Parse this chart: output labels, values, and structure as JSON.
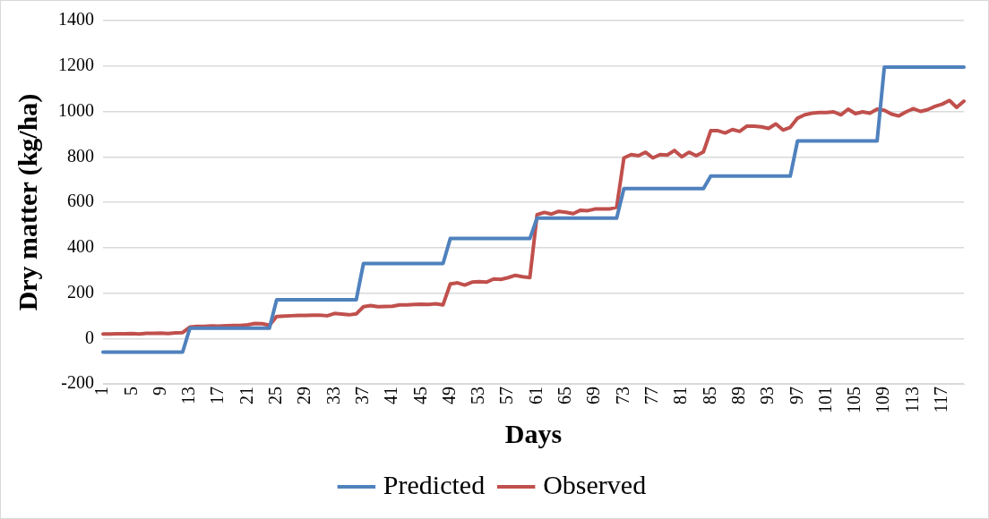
{
  "chart_data": {
    "type": "line",
    "xlabel": "Days",
    "ylabel": "Dry matter (kg/ha)",
    "categories": [
      "1",
      null,
      null,
      null,
      "5",
      null,
      null,
      null,
      "9",
      null,
      null,
      null,
      "13",
      null,
      null,
      null,
      "17",
      null,
      null,
      null,
      "21",
      null,
      null,
      null,
      "25",
      null,
      null,
      null,
      "29",
      null,
      null,
      null,
      "33",
      null,
      null,
      null,
      "37",
      null,
      null,
      null,
      "41",
      null,
      null,
      null,
      "45",
      null,
      null,
      null,
      "49",
      null,
      null,
      null,
      "53",
      null,
      null,
      null,
      "57",
      null,
      null,
      null,
      "61",
      null,
      null,
      null,
      "65",
      null,
      null,
      null,
      "69",
      null,
      null,
      null,
      "73",
      null,
      null,
      null,
      "77",
      null,
      null,
      null,
      "81",
      null,
      null,
      null,
      "85",
      null,
      null,
      null,
      "89",
      null,
      null,
      null,
      "93",
      null,
      null,
      null,
      "97",
      null,
      null,
      null,
      "101",
      null,
      null,
      null,
      "105",
      null,
      null,
      null,
      "109",
      null,
      null,
      null,
      "113",
      null,
      null,
      null,
      "117",
      null,
      null,
      null
    ],
    "series": [
      {
        "name": "Predicted",
        "color": "#4f81bd",
        "values": [
          -60,
          -60,
          -60,
          -60,
          -60,
          -60,
          -60,
          -60,
          -60,
          -60,
          -60,
          -60,
          45,
          45,
          45,
          45,
          45,
          45,
          45,
          45,
          45,
          45,
          45,
          45,
          170,
          170,
          170,
          170,
          170,
          170,
          170,
          170,
          170,
          170,
          170,
          170,
          330,
          330,
          330,
          330,
          330,
          330,
          330,
          330,
          330,
          330,
          330,
          330,
          440,
          440,
          440,
          440,
          440,
          440,
          440,
          440,
          440,
          440,
          440,
          440,
          530,
          530,
          530,
          530,
          530,
          530,
          530,
          530,
          530,
          530,
          530,
          530,
          660,
          660,
          660,
          660,
          660,
          660,
          660,
          660,
          660,
          660,
          660,
          660,
          715,
          715,
          715,
          715,
          715,
          715,
          715,
          715,
          715,
          715,
          715,
          715,
          870,
          870,
          870,
          870,
          870,
          870,
          870,
          870,
          870,
          870,
          870,
          870,
          1195,
          1195,
          1195,
          1195,
          1195,
          1195,
          1195,
          1195,
          1195,
          1195,
          1195,
          1195
        ]
      },
      {
        "name": "Observed",
        "color": "#c0504d",
        "values": [
          20,
          20,
          21,
          21,
          22,
          20,
          23,
          23,
          24,
          22,
          25,
          26,
          50,
          53,
          53,
          55,
          54,
          56,
          57,
          57,
          60,
          66,
          65,
          58,
          97,
          99,
          100,
          101,
          101,
          102,
          102,
          100,
          110,
          107,
          104,
          108,
          140,
          145,
          140,
          141,
          142,
          148,
          148,
          150,
          151,
          150,
          153,
          148,
          240,
          245,
          235,
          248,
          250,
          248,
          262,
          260,
          268,
          278,
          272,
          268,
          545,
          555,
          548,
          560,
          556,
          550,
          565,
          563,
          570,
          570,
          570,
          578,
          795,
          810,
          805,
          820,
          795,
          810,
          808,
          828,
          800,
          820,
          805,
          822,
          915,
          915,
          905,
          920,
          912,
          935,
          935,
          932,
          925,
          945,
          918,
          930,
          970,
          985,
          992,
          995,
          995,
          998,
          985,
          1010,
          990,
          998,
          992,
          1010,
          1005,
          988,
          980,
          998,
          1012,
          1000,
          1008,
          1022,
          1032,
          1048,
          1018,
          1045
        ]
      }
    ],
    "ylim": [
      -200,
      1400
    ],
    "yticks": [
      -200,
      0,
      200,
      400,
      600,
      800,
      1000,
      1200,
      1400
    ],
    "grid": "y",
    "legend": "bottom",
    "marker": "none",
    "line_style": "solid"
  }
}
